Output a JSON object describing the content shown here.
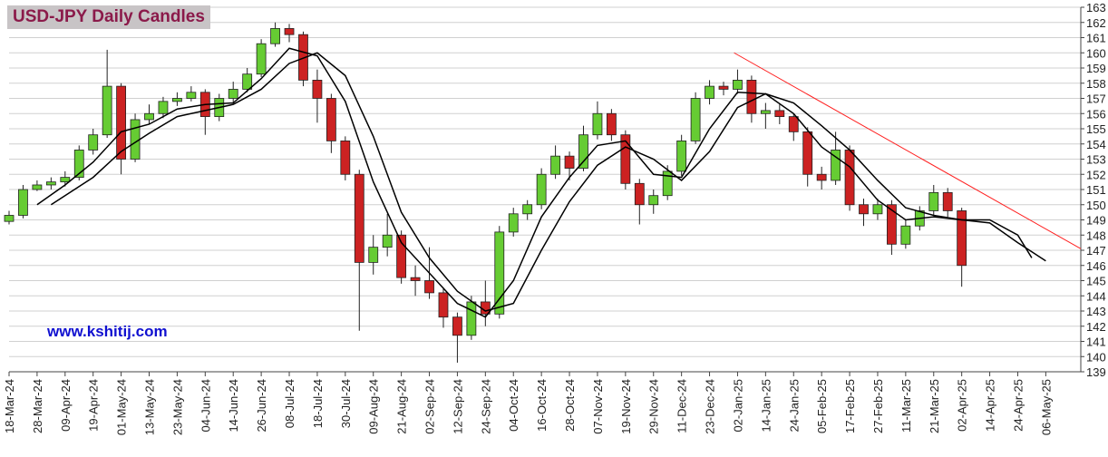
{
  "chart_data": {
    "type": "candlestick",
    "title": "USD-JPY Daily Candles",
    "annotations": [
      "www.kshitij.com"
    ],
    "xlim": [
      0,
      306
    ],
    "ylim": [
      139,
      163
    ],
    "yticks": [
      139,
      140,
      141,
      142,
      143,
      144,
      145,
      146,
      147,
      148,
      149,
      150,
      151,
      152,
      153,
      154,
      155,
      156,
      157,
      158,
      159,
      160,
      161,
      162,
      163
    ],
    "xticks": [
      {
        "value": 0,
        "label": "18-Mar-24"
      },
      {
        "value": 8,
        "label": "28-Mar-24"
      },
      {
        "value": 16,
        "label": "09-Apr-24"
      },
      {
        "value": 24,
        "label": "19-Apr-24"
      },
      {
        "value": 32,
        "label": "01-May-24"
      },
      {
        "value": 40,
        "label": "13-May-24"
      },
      {
        "value": 48,
        "label": "23-May-24"
      },
      {
        "value": 56,
        "label": "04-Jun-24"
      },
      {
        "value": 64,
        "label": "14-Jun-24"
      },
      {
        "value": 72,
        "label": "26-Jun-24"
      },
      {
        "value": 80,
        "label": "08-Jul-24"
      },
      {
        "value": 88,
        "label": "18-Jul-24"
      },
      {
        "value": 96,
        "label": "30-Jul-24"
      },
      {
        "value": 104,
        "label": "09-Aug-24"
      },
      {
        "value": 112,
        "label": "21-Aug-24"
      },
      {
        "value": 120,
        "label": "02-Sep-24"
      },
      {
        "value": 128,
        "label": "12-Sep-24"
      },
      {
        "value": 136,
        "label": "24-Sep-24"
      },
      {
        "value": 144,
        "label": "04-Oct-24"
      },
      {
        "value": 152,
        "label": "16-Oct-24"
      },
      {
        "value": 160,
        "label": "28-Oct-24"
      },
      {
        "value": 168,
        "label": "07-Nov-24"
      },
      {
        "value": 176,
        "label": "19-Nov-24"
      },
      {
        "value": 184,
        "label": "29-Nov-24"
      },
      {
        "value": 192,
        "label": "11-Dec-24"
      },
      {
        "value": 200,
        "label": "23-Dec-24"
      },
      {
        "value": 208,
        "label": "02-Jan-25"
      },
      {
        "value": 216,
        "label": "14-Jan-25"
      },
      {
        "value": 224,
        "label": "24-Jan-25"
      },
      {
        "value": 232,
        "label": "05-Feb-25"
      },
      {
        "value": 240,
        "label": "17-Feb-25"
      },
      {
        "value": 248,
        "label": "27-Feb-25"
      },
      {
        "value": 256,
        "label": "11-Mar-25"
      },
      {
        "value": 264,
        "label": "21-Mar-25"
      },
      {
        "value": 272,
        "label": "02-Apr-25"
      },
      {
        "value": 280,
        "label": "14-Apr-25"
      },
      {
        "value": 288,
        "label": "24-Apr-25"
      },
      {
        "value": 296,
        "label": "06-May-25"
      }
    ],
    "up_color": "#66cc33",
    "down_color": "#cc2222",
    "grid": true,
    "candles": {
      "x": [
        0,
        4,
        8,
        12,
        16,
        20,
        24,
        28,
        32,
        36,
        40,
        44,
        48,
        52,
        56,
        60,
        64,
        68,
        72,
        76,
        80,
        84,
        88,
        92,
        96,
        100,
        104,
        108,
        112,
        116,
        120,
        124,
        128,
        132,
        136,
        140,
        144,
        148,
        152,
        156,
        160,
        164,
        168,
        172,
        176,
        180,
        184,
        188,
        192,
        196,
        200,
        204,
        208,
        212,
        216,
        220,
        224,
        228,
        232,
        236,
        240,
        244,
        248,
        252,
        256,
        260,
        264,
        268,
        272
      ],
      "open": [
        148.9,
        149.3,
        151.0,
        151.3,
        151.5,
        151.8,
        153.6,
        154.6,
        157.8,
        153.0,
        155.6,
        156.0,
        156.8,
        157.0,
        157.4,
        155.8,
        157.0,
        157.6,
        158.6,
        160.6,
        161.6,
        161.2,
        158.2,
        157.0,
        154.2,
        152.0,
        146.2,
        147.2,
        148.0,
        145.2,
        145.0,
        144.2,
        142.6,
        141.4,
        143.6,
        142.8,
        148.2,
        149.4,
        150.0,
        152.0,
        153.2,
        152.4,
        154.6,
        156.0,
        154.6,
        151.4,
        150.0,
        150.6,
        152.2,
        154.2,
        157.0,
        157.8,
        157.6,
        158.2,
        156.0,
        156.2,
        155.8,
        154.8,
        152.0,
        151.6,
        153.6,
        150.0,
        149.4,
        150.0,
        147.4,
        148.6,
        149.6,
        150.8,
        149.6
      ],
      "high": [
        149.6,
        151.3,
        151.6,
        151.8,
        152.2,
        153.9,
        155.0,
        160.2,
        158.0,
        156.0,
        156.6,
        157.1,
        157.4,
        157.8,
        157.6,
        157.3,
        158.1,
        159.0,
        160.9,
        162.0,
        161.9,
        161.4,
        158.9,
        157.3,
        154.5,
        152.3,
        148.0,
        149.4,
        148.3,
        146.0,
        147.2,
        144.5,
        142.9,
        144.0,
        145.0,
        148.6,
        149.8,
        150.3,
        152.4,
        153.9,
        153.5,
        155.2,
        156.8,
        156.3,
        154.9,
        151.7,
        151.0,
        152.6,
        154.6,
        157.4,
        158.2,
        158.1,
        158.9,
        158.5,
        156.7,
        156.6,
        156.0,
        155.1,
        152.5,
        154.8,
        153.9,
        150.4,
        150.4,
        150.3,
        149.0,
        149.9,
        151.3,
        151.1,
        149.8
      ],
      "low": [
        148.7,
        149.1,
        150.9,
        151.0,
        151.2,
        151.6,
        153.3,
        154.4,
        152.0,
        152.8,
        155.3,
        155.7,
        156.5,
        156.8,
        154.6,
        155.5,
        156.7,
        157.4,
        158.4,
        160.4,
        160.7,
        157.8,
        155.4,
        153.4,
        151.6,
        141.7,
        145.4,
        146.6,
        144.8,
        144.0,
        143.8,
        141.9,
        139.6,
        141.1,
        142.0,
        142.5,
        147.9,
        149.0,
        149.7,
        151.7,
        151.6,
        152.2,
        154.3,
        154.2,
        151.0,
        148.7,
        149.4,
        150.3,
        151.9,
        154.0,
        156.6,
        157.2,
        157.3,
        155.4,
        155.0,
        155.3,
        154.2,
        151.2,
        151.0,
        151.3,
        149.6,
        148.6,
        149.0,
        146.7,
        147.1,
        148.3,
        149.3,
        149.2,
        144.6
      ],
      "close": [
        149.3,
        151.0,
        151.3,
        151.5,
        151.8,
        153.6,
        154.6,
        157.8,
        153.0,
        155.6,
        156.0,
        156.8,
        157.0,
        157.4,
        155.8,
        157.0,
        157.6,
        158.6,
        160.6,
        161.6,
        161.2,
        158.2,
        157.0,
        154.2,
        152.0,
        146.2,
        147.2,
        148.0,
        145.2,
        145.0,
        144.2,
        142.6,
        141.4,
        143.6,
        142.8,
        148.2,
        149.4,
        150.0,
        152.0,
        153.2,
        152.4,
        154.6,
        156.0,
        154.6,
        151.4,
        150.0,
        150.6,
        152.2,
        154.2,
        157.0,
        157.8,
        157.6,
        158.2,
        156.0,
        156.2,
        155.8,
        154.8,
        152.0,
        151.6,
        153.6,
        150.0,
        149.4,
        150.0,
        147.4,
        148.6,
        149.6,
        150.8,
        149.6,
        146.0
      ]
    },
    "series": [
      {
        "color": "#000000",
        "x": [
          8,
          16,
          24,
          32,
          40,
          48,
          56,
          64,
          72,
          80,
          88,
          96,
          104,
          112,
          120,
          128,
          136,
          144,
          152,
          160,
          168,
          176,
          184,
          192,
          200,
          208,
          216,
          224,
          232,
          240,
          248,
          256,
          264,
          272,
          280,
          288,
          292
        ],
        "values": [
          150.0,
          151.3,
          152.8,
          154.8,
          155.3,
          156.3,
          156.6,
          156.7,
          158.3,
          160.3,
          159.8,
          156.8,
          151.5,
          147.5,
          145.5,
          143.5,
          142.6,
          145.0,
          149.2,
          151.8,
          153.9,
          154.2,
          152.0,
          151.8,
          155.0,
          157.4,
          157.3,
          156.0,
          153.8,
          152.5,
          150.3,
          149.0,
          149.2,
          149.0,
          149.0,
          148.0,
          146.5
        ]
      },
      {
        "color": "#000000",
        "x": [
          12,
          24,
          32,
          40,
          48,
          56,
          64,
          72,
          80,
          88,
          96,
          104,
          112,
          120,
          128,
          136,
          144,
          152,
          160,
          168,
          176,
          184,
          192,
          200,
          208,
          216,
          224,
          232,
          240,
          248,
          256,
          264,
          272,
          280,
          288,
          296
        ],
        "values": [
          150.0,
          151.8,
          153.5,
          154.7,
          155.8,
          156.2,
          156.6,
          157.6,
          159.3,
          160.0,
          158.5,
          154.5,
          149.5,
          146.5,
          144.3,
          143.0,
          143.5,
          147.0,
          150.2,
          152.6,
          153.8,
          153.0,
          151.6,
          153.5,
          156.4,
          157.3,
          156.7,
          155.2,
          153.6,
          151.6,
          149.8,
          149.3,
          149.0,
          148.8,
          147.5,
          146.3
        ]
      }
    ],
    "trendline": {
      "color": "#ff2020",
      "x": [
        207,
        306
      ],
      "values": [
        160.0,
        147.1
      ]
    }
  }
}
